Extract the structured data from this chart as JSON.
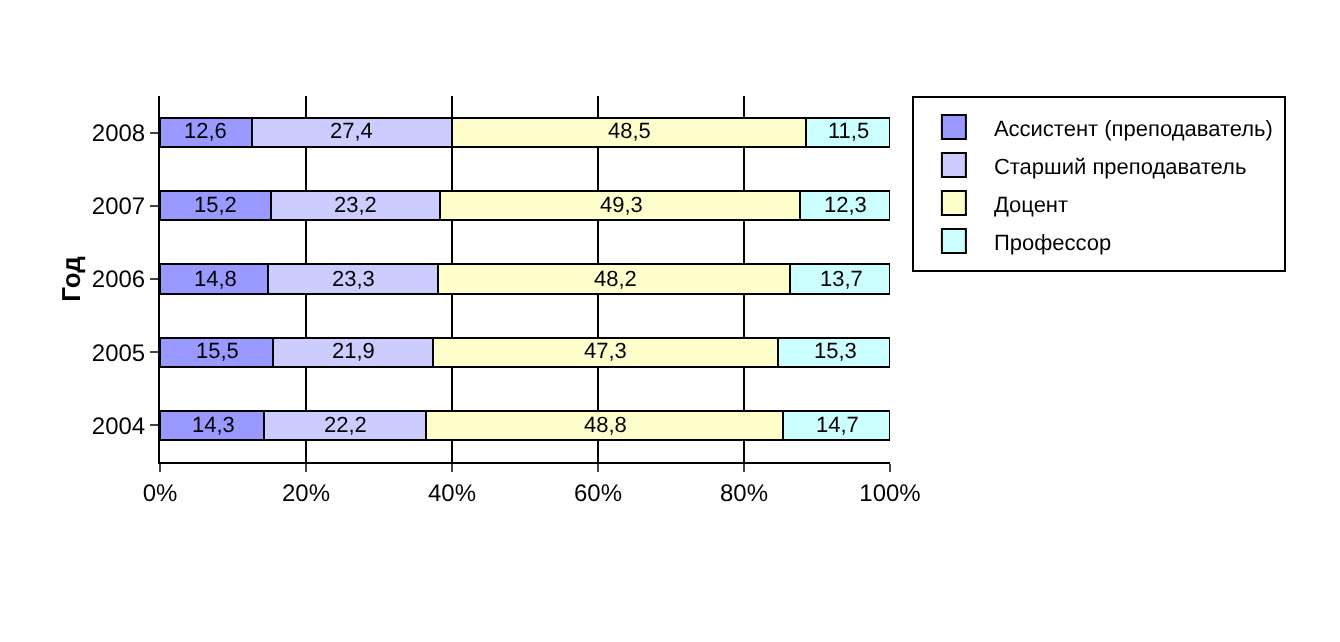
{
  "chart_data": {
    "type": "bar",
    "orientation": "horizontal",
    "stacked": true,
    "ylabel": "Год",
    "categories": [
      "2008",
      "2007",
      "2006",
      "2005",
      "2004"
    ],
    "series": [
      {
        "name": "Ассистент (преподаватель)",
        "color": "#9999ff",
        "values": [
          12.6,
          15.2,
          14.8,
          15.5,
          14.3
        ],
        "value_labels": [
          "12,6",
          "15,2",
          "14,8",
          "15,5",
          "14,3"
        ]
      },
      {
        "name": "Старший преподаватель",
        "color": "#ccccff",
        "values": [
          27.4,
          23.2,
          23.3,
          21.9,
          22.2
        ],
        "value_labels": [
          "27,4",
          "23,2",
          "23,3",
          "21,9",
          "22,2"
        ]
      },
      {
        "name": "Доцент",
        "color": "#ffffcc",
        "values": [
          48.5,
          49.3,
          48.2,
          47.3,
          48.8
        ],
        "value_labels": [
          "48,5",
          "49,3",
          "48,2",
          "47,3",
          "48,8"
        ]
      },
      {
        "name": "Профессор",
        "color": "#ccffff",
        "values": [
          11.5,
          12.3,
          13.7,
          15.3,
          14.7
        ],
        "value_labels": [
          "11,5",
          "12,3",
          "13,7",
          "15,3",
          "14,7"
        ]
      }
    ],
    "xlim": [
      0,
      100
    ],
    "xticks": [
      {
        "value": 0,
        "label": "0%"
      },
      {
        "value": 20,
        "label": "20%"
      },
      {
        "value": 40,
        "label": "40%"
      },
      {
        "value": 60,
        "label": "60%"
      },
      {
        "value": 80,
        "label": "80%"
      },
      {
        "value": 100,
        "label": "100%"
      }
    ],
    "grid": "x",
    "legend": "right"
  }
}
